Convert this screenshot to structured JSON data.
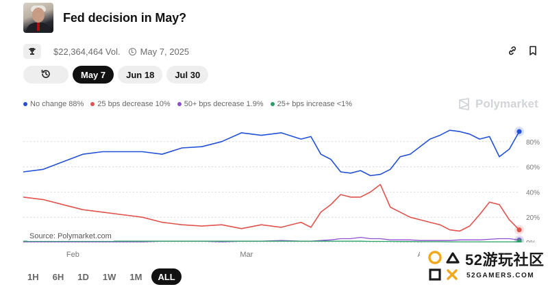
{
  "header": {
    "title": "Fed decision in May?",
    "avatar": "fed-chair-photo"
  },
  "meta": {
    "volume": "$22,364,464 Vol.",
    "date": "May 7, 2025"
  },
  "tabs": [
    {
      "label": "",
      "icon": "history-icon",
      "active": false
    },
    {
      "label": "May 7",
      "active": true
    },
    {
      "label": "Jun 18",
      "active": false
    },
    {
      "label": "Jul 30",
      "active": false
    }
  ],
  "legend": [
    {
      "label": "No change 88%",
      "color": "#2150d6"
    },
    {
      "label": "25 bps decrease 10%",
      "color": "#e0524b"
    },
    {
      "label": "50+ bps decrease 1.9%",
      "color": "#8c4fd0"
    },
    {
      "label": "25+ bps increase <1%",
      "color": "#27a064"
    }
  ],
  "brand": "Polymarket",
  "source": "Source: Polymarket.com",
  "ranges": [
    "1H",
    "6H",
    "1D",
    "1W",
    "1M",
    "ALL"
  ],
  "active_range": "ALL",
  "watermark": {
    "big": "52游玩社区",
    "small": "52GAMERS.COM"
  },
  "chart_data": {
    "type": "line",
    "y_ticks": [
      "80%",
      "60%",
      "40%",
      "20%",
      "0%"
    ],
    "x_ticks": [
      "Feb",
      "Mar",
      "A"
    ],
    "ylim": [
      0,
      100
    ],
    "x": [
      0,
      4,
      8,
      12,
      16,
      20,
      24,
      28,
      32,
      36,
      40,
      44,
      48,
      52,
      56,
      58,
      60,
      62,
      64,
      66,
      68,
      70,
      72,
      74,
      76,
      78,
      80,
      82,
      84,
      86,
      88,
      90,
      92,
      94,
      96,
      98,
      100
    ],
    "series": [
      {
        "name": "No change",
        "color": "#2150d6",
        "values": [
          56,
          58,
          64,
          70,
          72,
          72,
          72,
          70,
          75,
          76,
          80,
          87,
          85,
          87,
          82,
          84,
          70,
          66,
          56,
          55,
          57,
          53,
          54,
          58,
          68,
          70,
          76,
          82,
          85,
          89,
          88,
          86,
          82,
          84,
          68,
          74,
          88
        ]
      },
      {
        "name": "25 bps decrease",
        "color": "#e0524b",
        "values": [
          36,
          34,
          30,
          26,
          24,
          22,
          20,
          16,
          14,
          13,
          14,
          11,
          14,
          12,
          16,
          12,
          24,
          30,
          38,
          36,
          36,
          40,
          46,
          28,
          24,
          20,
          18,
          16,
          14,
          10,
          9,
          13,
          22,
          32,
          30,
          18,
          10
        ]
      },
      {
        "name": "50+ bps decrease",
        "color": "#8c4fd0",
        "values": [
          0.5,
          0.5,
          0.5,
          0.5,
          0.5,
          0.5,
          0.5,
          1,
          1,
          1,
          0.5,
          1,
          1,
          1.5,
          1,
          1,
          1.5,
          2,
          3,
          3,
          4,
          3,
          3,
          2,
          2,
          2,
          1.5,
          1.5,
          1.5,
          1.5,
          2,
          2,
          2,
          2.5,
          3,
          3,
          1.9
        ]
      },
      {
        "name": "25+ bps increase",
        "color": "#27a064",
        "values": [
          1,
          1,
          1,
          1,
          1,
          1,
          1,
          1,
          1,
          1,
          1,
          1,
          1,
          1,
          1,
          1,
          1,
          1,
          1,
          1,
          1,
          0.8,
          0.8,
          0.8,
          0.7,
          0.7,
          0.6,
          0.6,
          0.6,
          0.5,
          0.5,
          0.5,
          0.5,
          0.5,
          0.5,
          0.5,
          0.5
        ]
      }
    ]
  }
}
